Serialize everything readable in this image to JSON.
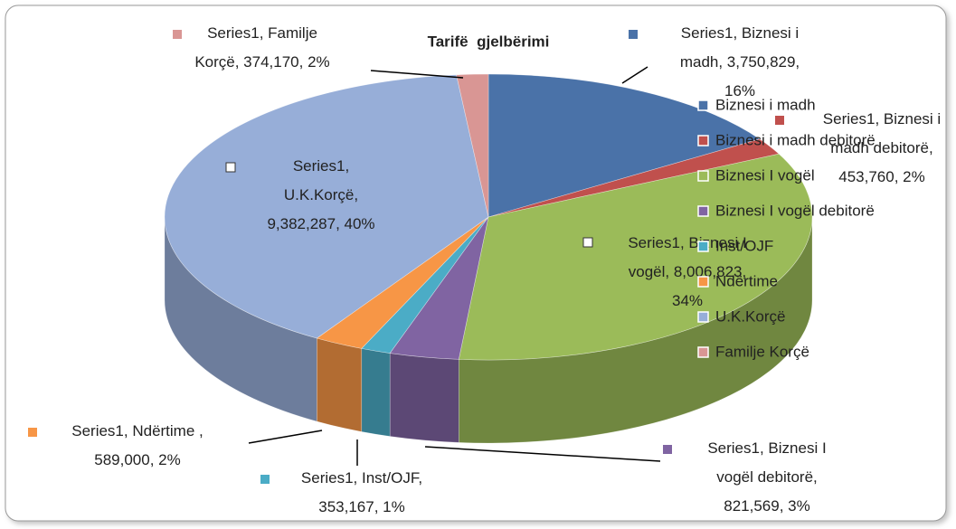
{
  "chart_data": {
    "type": "pie",
    "title": "Tarifë  gjelbërimi",
    "series": [
      {
        "name": "Series1",
        "categories": [
          "Biznesi i madh",
          "Biznesi i madh debitorë",
          "Biznesi I vogël",
          "Biznesi I vogël debitorë",
          "Inst/OJF",
          "Ndërtime",
          "U.K.Korçë",
          "Familje Korçë"
        ],
        "values": [
          3750829,
          453760,
          8006823,
          821569,
          353167,
          589000,
          9382287,
          374170
        ],
        "value_labels": [
          "Series1, Biznesi i madh, 3,750,829, 16%",
          "Series1, Biznesi i madh debitorë, 453,760, 2%",
          "Series1, Biznesi I vogël, 8,006,823, 34%",
          "Series1, Biznesi I vogël debitorë, 821,569, 3%",
          "Series1, Inst/OJF, 353,167, 1%",
          "Series1, Ndërtime , 589,000, 2%",
          "Series1, U.K.Korçë, 9,382,287, 40%",
          "Series1, Familje Korçë, 374,170, 2%"
        ],
        "colors": [
          "#4a72a8",
          "#c0504d",
          "#9bbb59",
          "#8064a2",
          "#4bacc6",
          "#f79646",
          "#97aed8",
          "#d99694"
        ]
      }
    ],
    "legend": "right"
  }
}
